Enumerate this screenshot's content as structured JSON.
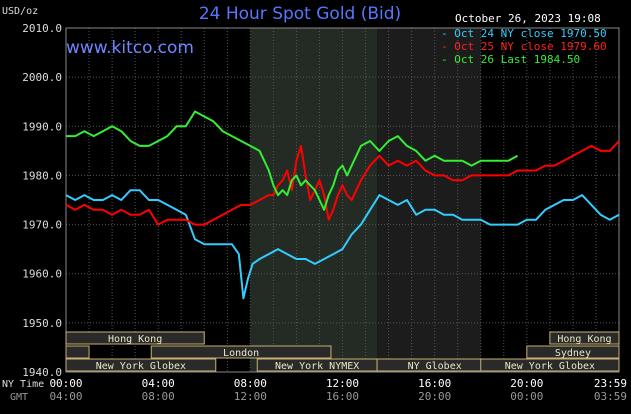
{
  "header": {
    "title": "24 Hour Spot Gold (Bid)",
    "brand": "www.kitco.com",
    "unit": "USD/oz",
    "timestamp": "October 26, 2023 19:08"
  },
  "colors": {
    "background": "#000000",
    "grid": "#555555",
    "night_band": "#1c1c1c",
    "ny_band": "#242b24",
    "oct24": "#33ccff",
    "oct25": "#ff0000",
    "oct26": "#33ee33",
    "market_box_fill": "#2a2a2a",
    "market_box_border": "#c8b070",
    "market_text": "#e8e8c8"
  },
  "chart_data": {
    "type": "line",
    "title": "24 Hour Spot Gold (Bid)",
    "xlabel": "",
    "ylabel": "USD/oz",
    "x_unit": "hours since 00:00 NY time",
    "xlim": [
      0,
      24
    ],
    "ylim": [
      1940,
      2010
    ],
    "yticks": [
      "2010.0",
      "2000.0",
      "1990.0",
      "1980.0",
      "1970.0",
      "1960.0",
      "1950.0",
      "1940.0"
    ],
    "ytick_values": [
      2010,
      2000,
      1990,
      1980,
      1970,
      1960,
      1950,
      1940
    ],
    "xtick_ny": [
      "00:00",
      "04:00",
      "08:00",
      "12:00",
      "16:00",
      "20:00",
      "23:59"
    ],
    "xtick_gmt": [
      "04:00",
      "08:00",
      "12:00",
      "16:00",
      "20:00",
      "00:00",
      "03:59"
    ],
    "xtick_values": [
      0,
      4,
      8,
      12,
      16,
      20,
      24
    ],
    "row_labels": {
      "ny": "NY Time",
      "gmt": "GMT"
    },
    "grid": true,
    "legend_position": "top-right",
    "series": [
      {
        "name": "Oct 24 NY close 1970.50",
        "color_key": "oct24",
        "x": [
          0,
          0.4,
          0.8,
          1.2,
          1.6,
          2.0,
          2.4,
          2.8,
          3.2,
          3.6,
          4.0,
          4.4,
          4.8,
          5.2,
          5.6,
          6.0,
          6.4,
          6.8,
          7.2,
          7.5,
          7.7,
          7.9,
          8.1,
          8.4,
          8.8,
          9.2,
          9.6,
          10.0,
          10.4,
          10.8,
          11.2,
          11.6,
          12.0,
          12.4,
          12.8,
          13.2,
          13.6,
          14.0,
          14.4,
          14.8,
          15.2,
          15.6,
          16.0,
          16.4,
          16.8,
          17.2,
          17.6,
          18.0,
          18.4,
          18.8,
          19.2,
          19.6,
          20.0,
          20.4,
          20.8,
          21.2,
          21.6,
          22.0,
          22.4,
          22.8,
          23.2,
          23.6,
          24.0
        ],
        "values": [
          1976,
          1975,
          1976,
          1975,
          1975,
          1976,
          1975,
          1977,
          1977,
          1975,
          1975,
          1974,
          1973,
          1972,
          1967,
          1966,
          1966,
          1966,
          1966,
          1964,
          1955,
          1959,
          1962,
          1963,
          1964,
          1965,
          1964,
          1963,
          1963,
          1962,
          1963,
          1964,
          1965,
          1968,
          1970,
          1973,
          1976,
          1975,
          1974,
          1975,
          1972,
          1973,
          1973,
          1972,
          1972,
          1971,
          1971,
          1971,
          1970,
          1970,
          1970,
          1970,
          1971,
          1971,
          1973,
          1974,
          1975,
          1975,
          1976,
          1974,
          1972,
          1971,
          1972
        ]
      },
      {
        "name": "Oct 25 NY close 1979.60",
        "color_key": "oct25",
        "x": [
          0,
          0.4,
          0.8,
          1.2,
          1.6,
          2.0,
          2.4,
          2.8,
          3.2,
          3.6,
          4.0,
          4.4,
          4.8,
          5.2,
          5.6,
          6.0,
          6.4,
          6.8,
          7.2,
          7.6,
          8.0,
          8.4,
          8.8,
          9.0,
          9.2,
          9.4,
          9.6,
          9.8,
          10.0,
          10.2,
          10.4,
          10.6,
          10.8,
          11.0,
          11.2,
          11.4,
          11.6,
          11.8,
          12.0,
          12.2,
          12.4,
          12.8,
          13.2,
          13.6,
          14.0,
          14.4,
          14.8,
          15.2,
          15.6,
          16.0,
          16.4,
          16.8,
          17.2,
          17.6,
          18.0,
          18.4,
          18.8,
          19.2,
          19.6,
          20.0,
          20.4,
          20.8,
          21.2,
          21.6,
          22.0,
          22.4,
          22.8,
          23.2,
          23.6,
          24.0
        ],
        "values": [
          1974,
          1973,
          1974,
          1973,
          1973,
          1972,
          1973,
          1972,
          1972,
          1973,
          1970,
          1971,
          1971,
          1971,
          1970,
          1970,
          1971,
          1972,
          1973,
          1974,
          1974,
          1975,
          1976,
          1976,
          1978,
          1979,
          1981,
          1977,
          1983,
          1986,
          1980,
          1975,
          1977,
          1979,
          1976,
          1971,
          1973,
          1976,
          1978,
          1976,
          1975,
          1979,
          1982,
          1984,
          1982,
          1983,
          1982,
          1983,
          1981,
          1980,
          1980,
          1979,
          1979,
          1980,
          1980,
          1980,
          1980,
          1980,
          1981,
          1981,
          1981,
          1982,
          1982,
          1983,
          1984,
          1985,
          1986,
          1985,
          1985,
          1987
        ]
      },
      {
        "name": "Oct 26 Last 1984.50",
        "color_key": "oct26",
        "x": [
          0,
          0.4,
          0.8,
          1.2,
          1.6,
          2.0,
          2.4,
          2.8,
          3.2,
          3.6,
          4.0,
          4.4,
          4.8,
          5.2,
          5.6,
          6.0,
          6.4,
          6.8,
          7.2,
          7.6,
          8.0,
          8.4,
          8.6,
          8.8,
          9.0,
          9.2,
          9.4,
          9.6,
          9.8,
          10.0,
          10.2,
          10.4,
          10.6,
          10.8,
          11.0,
          11.2,
          11.4,
          11.6,
          11.8,
          12.0,
          12.2,
          12.4,
          12.6,
          12.8,
          13.2,
          13.6,
          14.0,
          14.4,
          14.8,
          15.2,
          15.6,
          16.0,
          16.4,
          16.8,
          17.2,
          17.6,
          18.0,
          18.4,
          18.8,
          19.2,
          19.6
        ],
        "values": [
          1988,
          1988,
          1989,
          1988,
          1989,
          1990,
          1989,
          1987,
          1986,
          1986,
          1987,
          1988,
          1990,
          1990,
          1993,
          1992,
          1991,
          1989,
          1988,
          1987,
          1986,
          1985,
          1983,
          1981,
          1978,
          1976,
          1977,
          1976,
          1979,
          1980,
          1978,
          1979,
          1978,
          1977,
          1975,
          1973,
          1976,
          1978,
          1981,
          1982,
          1980,
          1982,
          1984,
          1986,
          1987,
          1985,
          1987,
          1988,
          1986,
          1985,
          1983,
          1984,
          1983,
          1983,
          1983,
          1982,
          1983,
          1983,
          1983,
          1983,
          1984
        ]
      }
    ],
    "legend": [
      "Oct 24 NY close 1970.50",
      "Oct 25 NY close 1979.60",
      "Oct 26 Last 1984.50"
    ],
    "markets": [
      {
        "label": "Hong Kong",
        "start": 0,
        "end": 6,
        "row": 0
      },
      {
        "label": "",
        "start": 0,
        "end": 1,
        "row": 1
      },
      {
        "label": "London",
        "start": 3.7,
        "end": 11.5,
        "row": 1
      },
      {
        "label": "New York Globex",
        "start": 0,
        "end": 6.5,
        "row": 2
      },
      {
        "label": "New York NYMEX",
        "start": 8.3,
        "end": 13.5,
        "row": 2
      },
      {
        "label": "NY Globex",
        "start": 13.5,
        "end": 18.5,
        "row": 2
      },
      {
        "label": "Hong Kong",
        "start": 21,
        "end": 24,
        "row": 0
      },
      {
        "label": "Sydney",
        "start": 20,
        "end": 24,
        "row": 1
      },
      {
        "label": "New York Globex",
        "start": 18,
        "end": 24,
        "row": 2
      }
    ]
  }
}
